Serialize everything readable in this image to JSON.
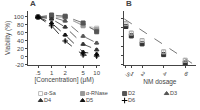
{
  "chart_data": [
    {
      "type": "line",
      "title": "A",
      "xlabel": "[Concentration] (μM)",
      "ylabel": "Viability (%)",
      "x": [
        0.5,
        1.0,
        2.0,
        5.0,
        10.0
      ],
      "series": [
        {
          "name": "α-Sa",
          "color": "#bbbbbb",
          "marker": "open square",
          "line_style": "dashed",
          "values": [
            100,
            100,
            100,
            80,
            72
          ],
          "error": [
            3,
            3,
            3,
            3,
            3
          ]
        },
        {
          "name": "α-RNase",
          "color": "#999999",
          "marker": "square",
          "line_style": "dashed",
          "values": [
            100,
            100,
            100,
            78,
            68
          ],
          "error": [
            3,
            3,
            3,
            3,
            3
          ]
        },
        {
          "name": "D2",
          "color": "#555555",
          "marker": "square",
          "line_style": "dashed",
          "values": [
            100,
            105,
            102,
            85,
            63
          ],
          "error": [
            3,
            3,
            3,
            3,
            3
          ]
        },
        {
          "name": "D3",
          "color": "#555555",
          "marker": "triangle",
          "line_style": "dashed",
          "values": [
            100,
            100,
            90,
            52,
            35
          ],
          "error": [
            3,
            3,
            3,
            3,
            3
          ]
        },
        {
          "name": "D4",
          "color": "#333333",
          "marker": "triangle",
          "line_style": "dashed",
          "values": [
            100,
            95,
            75,
            32,
            18
          ],
          "error": [
            3,
            3,
            3,
            3,
            3
          ]
        },
        {
          "name": "D5",
          "color": "#111111",
          "marker": "triangle",
          "line_style": "dashed",
          "values": [
            100,
            85,
            55,
            12,
            7
          ],
          "error": [
            3,
            3,
            3,
            3,
            3
          ]
        },
        {
          "name": "D6",
          "color": "#000000",
          "marker": "plus",
          "line_style": "dashed",
          "values": [
            100,
            78,
            40,
            5,
            2
          ],
          "error": [
            3,
            3,
            3,
            3,
            3
          ]
        }
      ],
      "log": "x",
      "xlim": [
        0.3,
        12
      ],
      "ylim": [
        -20,
        115
      ],
      "xticks": [
        {
          "value": 0.5,
          "label": ".5"
        },
        1,
        2,
        5,
        10
      ],
      "yticks": [
        -20,
        0,
        20,
        40,
        60,
        80,
        100
      ],
      "grid": false,
      "legend": "lower left"
    },
    {
      "type": "scatter",
      "title": "B",
      "xlabel": "NM dosage",
      "x": [
        0.5,
        1.0,
        2.0,
        4.0,
        6.0
      ],
      "series": [
        {
          "type": "line",
          "color": "#555555",
          "line_style": "dashed",
          "x": [
            0.35,
            6.8
          ],
          "values": [
            98,
            1
          ]
        },
        {
          "color": "#333333",
          "marker": "square",
          "values": [
            82,
            62,
            45,
            22,
            4
          ],
          "error": [
            4,
            4,
            4,
            4,
            4
          ]
        },
        {
          "color": "#aaaaaa",
          "marker": "open square",
          "values": [
            88,
            68,
            52,
            28,
            10
          ],
          "error": [
            4,
            4,
            4,
            4,
            4
          ]
        }
      ],
      "xlim": [
        0.3,
        7
      ],
      "ylim": [
        0,
        115
      ],
      "xticks": [
        {
          "value": 0.5,
          "label": ".5"
        },
        1,
        2,
        4,
        6
      ],
      "yticks": [
        0,
        20,
        40,
        60,
        80,
        100
      ],
      "grid": false,
      "tick_labels": "x"
    }
  ]
}
